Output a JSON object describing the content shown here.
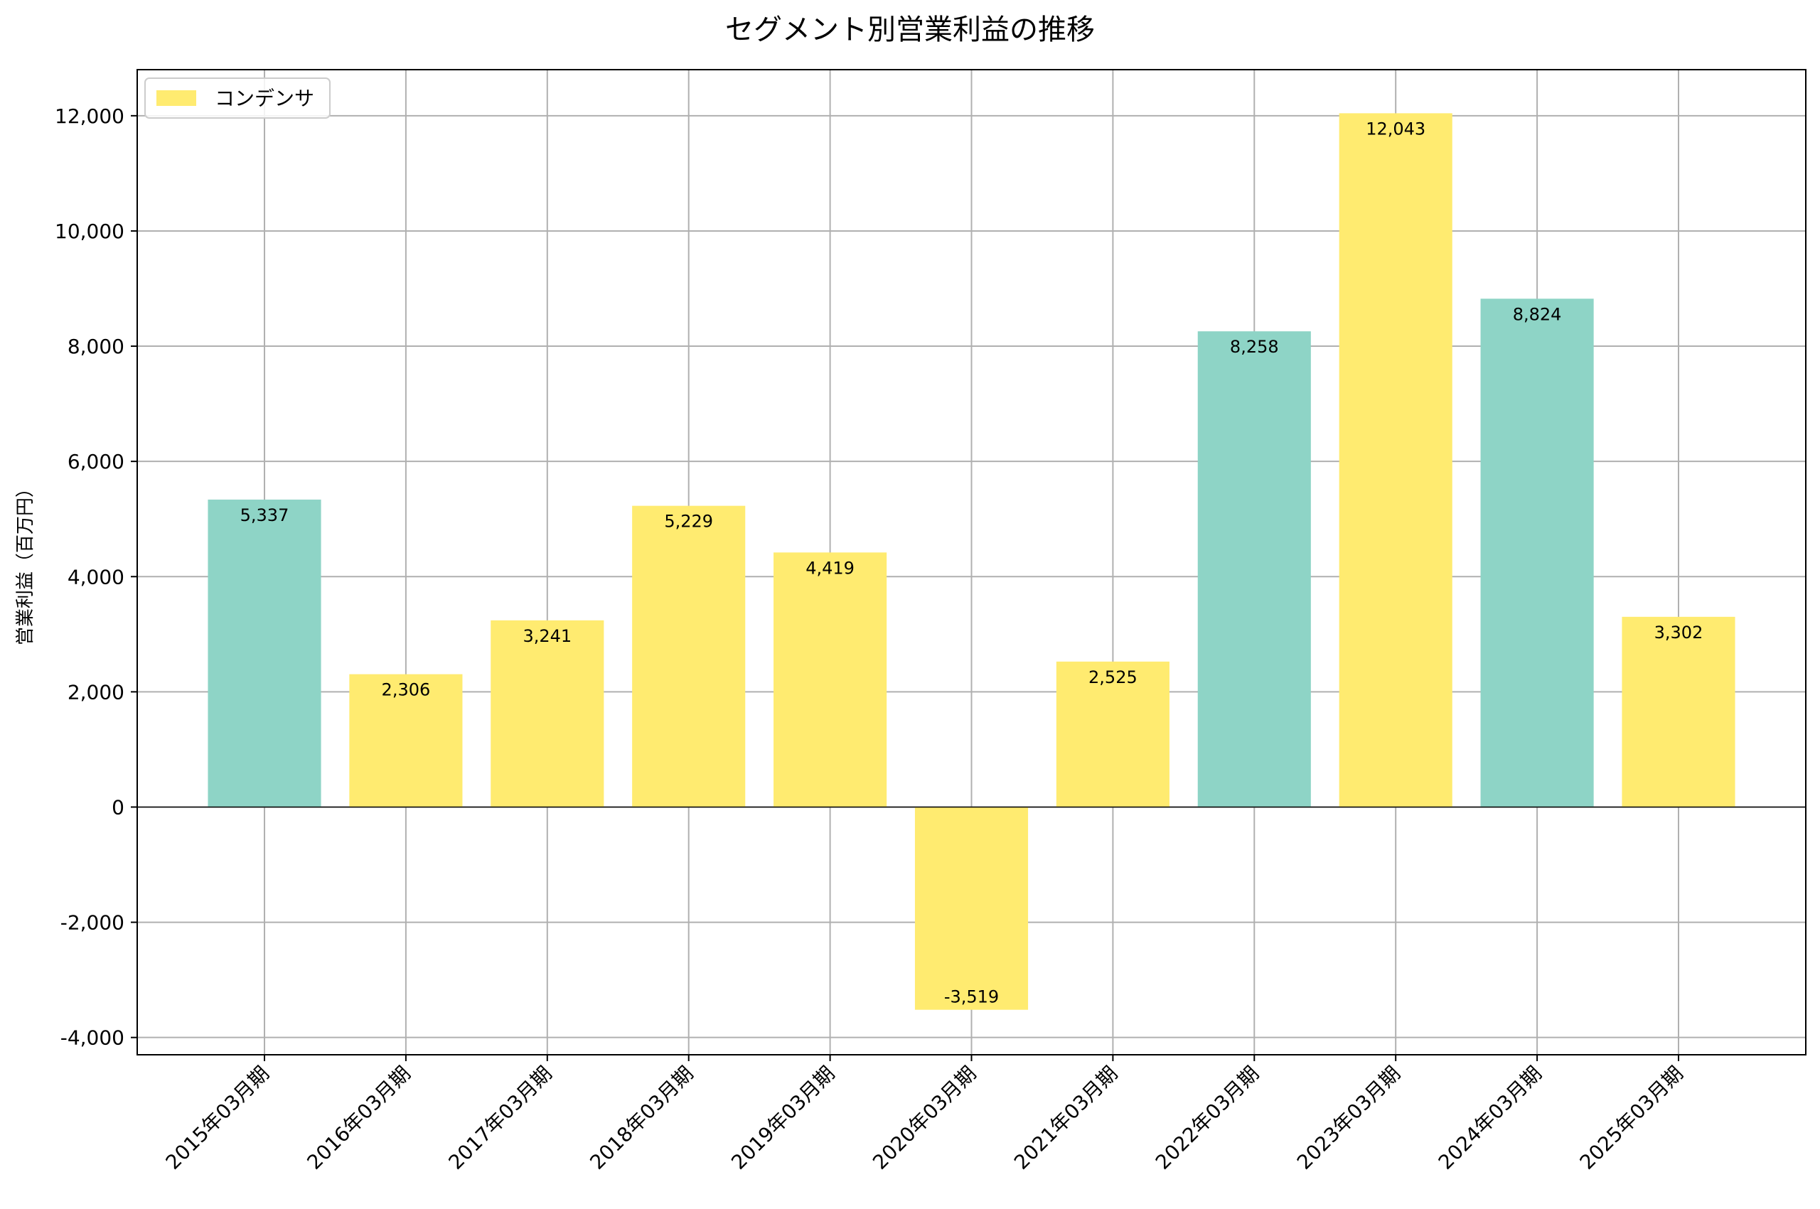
{
  "chart_data": {
    "type": "bar",
    "title": "セグメント別営業利益の推移",
    "xlabel": "",
    "ylabel": "営業利益（百万円）",
    "ylim": [
      -4300,
      12800
    ],
    "yticks": [
      -4000,
      -2000,
      0,
      2000,
      4000,
      6000,
      8000,
      10000,
      12000
    ],
    "ytick_labels": [
      "-4,000",
      "-2,000",
      "0",
      "2,000",
      "4,000",
      "6,000",
      "8,000",
      "10,000",
      "12,000"
    ],
    "grid": true,
    "legend": {
      "location": "top-left",
      "entries": [
        {
          "label": "コンデンサ",
          "color": "#FFEB70"
        }
      ]
    },
    "categories": [
      "2015年03月期",
      "2016年03月期",
      "2017年03月期",
      "2018年03月期",
      "2019年03月期",
      "2020年03月期",
      "2021年03月期",
      "2022年03月期",
      "2023年03月期",
      "2024年03月期",
      "2025年03月期"
    ],
    "values": [
      5337,
      2306,
      3241,
      5229,
      4419,
      -3519,
      2525,
      8258,
      12043,
      8824,
      3302
    ],
    "value_labels": [
      "5,337",
      "2,306",
      "3,241",
      "5,229",
      "4,419",
      "-3,519",
      "2,525",
      "8,258",
      "12,043",
      "8,824",
      "3,302"
    ],
    "colors": [
      "#8ED4C6",
      "#FFEB70",
      "#FFEB70",
      "#FFEB70",
      "#FFEB70",
      "#FFEB70",
      "#FFEB70",
      "#8ED4C6",
      "#FFEB70",
      "#8ED4C6",
      "#FFEB70"
    ]
  }
}
